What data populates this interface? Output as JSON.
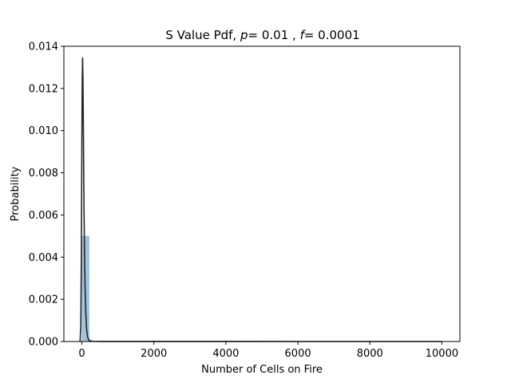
{
  "chart_data": {
    "type": "area",
    "title": {
      "prefix": "S Value Pdf, ",
      "p_symbol": "p",
      "p_value": "= 0.01",
      "separator": " , ",
      "f_symbol": "f",
      "f_value": "= 0.0001"
    },
    "xlabel": "Number of Cells on Fire",
    "ylabel": "Probability",
    "xlim": [
      -500,
      10500
    ],
    "ylim": [
      0,
      0.014
    ],
    "x_ticks": [
      0,
      2000,
      4000,
      6000,
      8000,
      10000
    ],
    "x_tick_labels": [
      "0",
      "2000",
      "4000",
      "6000",
      "8000",
      "10000"
    ],
    "y_ticks": [
      0,
      0.002,
      0.004,
      0.006,
      0.008,
      0.01,
      0.012,
      0.014
    ],
    "y_tick_labels": [
      "0.000",
      "0.002",
      "0.004",
      "0.006",
      "0.008",
      "0.010",
      "0.012",
      "0.014"
    ],
    "grid": false,
    "histogram": {
      "color": "#8fb9d8",
      "bins": [
        {
          "x0": 0,
          "x1": 200,
          "value": 0.005
        }
      ]
    },
    "kde_line": {
      "color": "#262626",
      "x": [
        -50,
        -30,
        -15,
        0,
        10,
        20,
        30,
        40,
        50,
        60,
        75,
        90,
        110,
        130,
        160,
        200,
        250,
        300,
        400,
        500,
        1000,
        2000,
        4000,
        6000,
        8000,
        10000
      ],
      "y": [
        0.0,
        0.0008,
        0.004,
        0.0095,
        0.0125,
        0.01345,
        0.0125,
        0.0105,
        0.0083,
        0.0062,
        0.004,
        0.0025,
        0.0013,
        0.0006,
        0.0002,
        6e-05,
        2e-05,
        1e-05,
        5e-06,
        3e-06,
        2e-06,
        1e-06,
        1e-06,
        5e-07,
        3e-07,
        2e-07
      ]
    }
  }
}
